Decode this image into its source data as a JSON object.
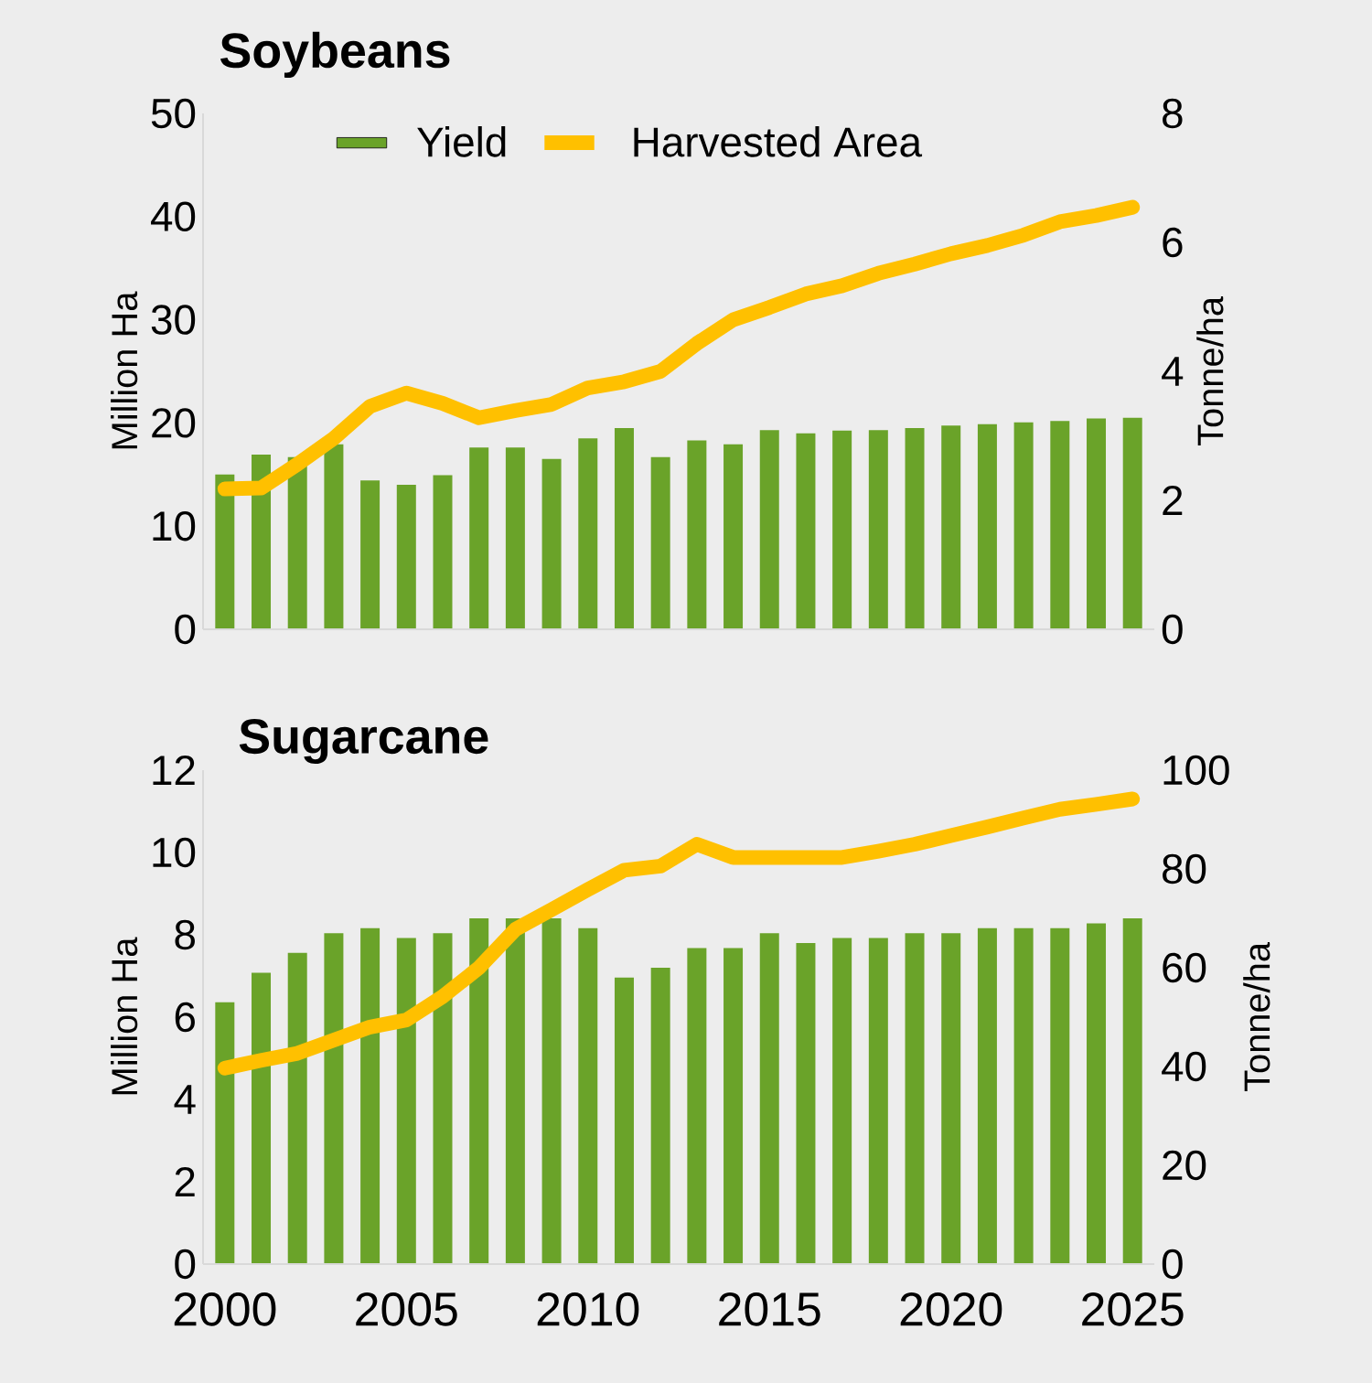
{
  "chart_data": [
    {
      "type": "bar",
      "title": "Soybeans",
      "ylabel": "Million Ha",
      "y2label": "Tonne/ha",
      "x": [
        2000,
        2001,
        2002,
        2003,
        2004,
        2005,
        2006,
        2007,
        2008,
        2009,
        2010,
        2011,
        2012,
        2013,
        2014,
        2015,
        2016,
        2017,
        2018,
        2019,
        2020,
        2021,
        2022,
        2023,
        2024,
        2025
      ],
      "xlim": [
        1999.4,
        2025.6
      ],
      "ylim": [
        0,
        50
      ],
      "yticks": [
        0,
        10,
        20,
        30,
        40,
        50
      ],
      "y2lim": [
        0,
        8
      ],
      "y2ticks": [
        0,
        2,
        4,
        6,
        8
      ],
      "tick_labels": [
        "y",
        "y2"
      ],
      "legend": "top",
      "series": [
        {
          "name": "Yield",
          "axis": "y2",
          "color": "#6aa329",
          "values": [
            2.4,
            2.71,
            2.67,
            2.87,
            2.31,
            2.24,
            2.39,
            2.82,
            2.82,
            2.64,
            2.96,
            3.12,
            2.67,
            2.93,
            2.87,
            3.09,
            3.04,
            3.08,
            3.09,
            3.12,
            3.16,
            3.18,
            3.21,
            3.23,
            3.27,
            3.28
          ]
        },
        {
          "name": "Harvested Area",
          "type": "line",
          "axis": "y",
          "color": "#ffc000",
          "values": [
            13.6,
            13.7,
            16.0,
            18.5,
            21.6,
            22.9,
            21.9,
            20.5,
            21.2,
            21.8,
            23.4,
            24.0,
            25.0,
            27.7,
            30.0,
            31.2,
            32.5,
            33.3,
            34.5,
            35.4,
            36.4,
            37.2,
            38.2,
            39.5,
            40.1,
            40.9
          ]
        }
      ]
    },
    {
      "type": "bar",
      "title": "Sugarcane",
      "ylabel": "Million Ha",
      "y2label": "Tonne/ha",
      "x": [
        2000,
        2001,
        2002,
        2003,
        2004,
        2005,
        2006,
        2007,
        2008,
        2009,
        2010,
        2011,
        2012,
        2013,
        2014,
        2015,
        2016,
        2017,
        2018,
        2019,
        2020,
        2021,
        2022,
        2023,
        2024,
        2025
      ],
      "xlim": [
        1999.4,
        2025.6
      ],
      "xticks": [
        2000,
        2005,
        2010,
        2015,
        2020,
        2025
      ],
      "ylim": [
        0,
        12
      ],
      "yticks": [
        0,
        2,
        4,
        6,
        8,
        10,
        12
      ],
      "y2lim": [
        0,
        100
      ],
      "y2ticks": [
        0,
        20,
        40,
        60,
        80,
        100
      ],
      "series": [
        {
          "axis": "y2",
          "color": "#6aa329",
          "values": [
            53,
            59,
            63,
            67,
            68,
            66,
            67,
            70,
            70,
            70,
            68,
            58,
            60,
            64,
            64,
            67,
            65,
            66,
            66,
            67,
            67,
            68,
            68,
            68,
            69,
            70
          ]
        },
        {
          "type": "line",
          "axis": "y",
          "color": "#ffc000",
          "values": [
            4.76,
            4.95,
            5.12,
            5.44,
            5.76,
            5.93,
            6.5,
            7.2,
            8.13,
            8.61,
            9.1,
            9.57,
            9.67,
            10.2,
            9.88,
            9.88,
            9.88,
            9.88,
            10.03,
            10.2,
            10.41,
            10.62,
            10.84,
            11.05,
            11.17,
            11.3
          ]
        }
      ]
    }
  ]
}
